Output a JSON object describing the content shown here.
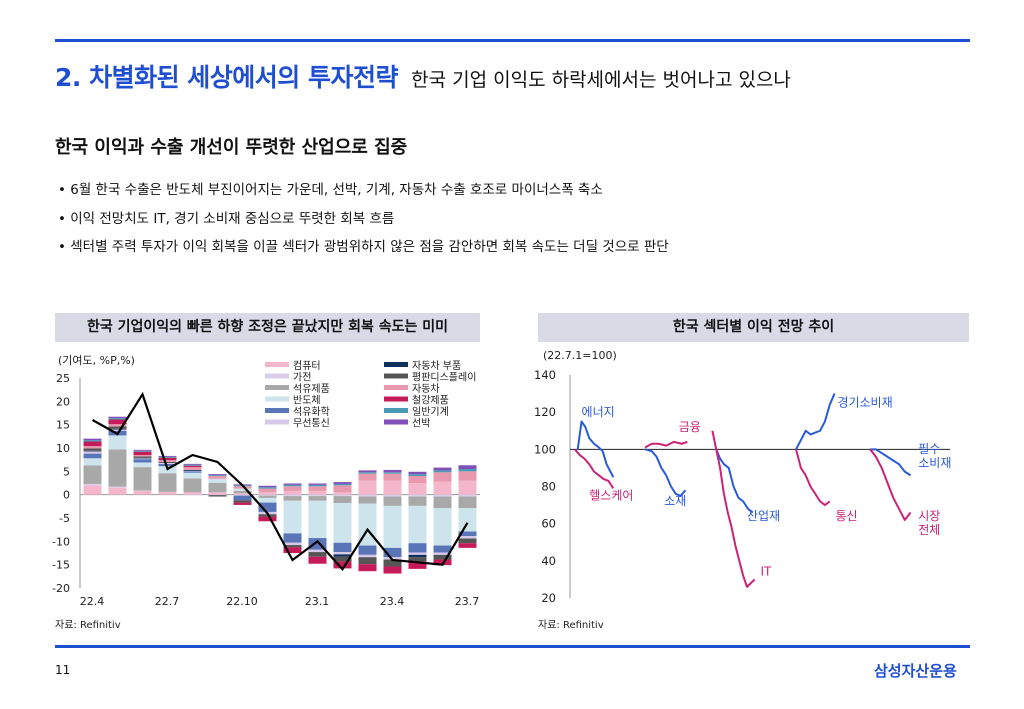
{
  "header": {
    "title": "2. 차별화된 세상에서의 투자전략",
    "subtitle": "한국 기업 이익도 하락세에서는 벗어나고 있으나"
  },
  "section_title": "한국 이익과 수출 개선이 뚜렷한 산업으로 집중",
  "bullets": [
    "• 6월 한국 수출은 반도체 부진이어지는 가운데, 선박, 기계, 자동차 수출 호조로 마이너스폭 축소",
    "• 이익 전망치도 IT, 경기 소비재 중심으로 뚜렷한 회복 흐름",
    "• 섹터별 주력 투자가 이익 회복을 이끌 섹터가 광범위하지 않은 점을 감안하면 회복 속도는 더딜 것으로 판단"
  ],
  "left_panel": {
    "title": "한국 기업이익의 빠른 하향 조정은 끝났지만 회복 속도는 미미",
    "unit": "(기여도, %P,%)",
    "source": "자료: Refinitiv"
  },
  "right_panel": {
    "title": "한국 섹터별 이익 전망 추이",
    "unit": "(22.7.1=100)",
    "source": "자료: Refinitiv"
  },
  "footer": {
    "page": "11",
    "brand": "삼성자산운용"
  },
  "colors": {
    "accent": "#1f4fd1"
  },
  "chart_data": [
    {
      "type": "bar",
      "stacked": true,
      "ylim": [
        -20,
        25
      ],
      "yticks": [
        25,
        20,
        15,
        10,
        5,
        0,
        -5,
        -10,
        -15,
        -20
      ],
      "xtick_labels": [
        "22.4",
        "22.7",
        "22.10",
        "23.1",
        "23.4",
        "23.7"
      ],
      "xtick_index": [
        0,
        3,
        6,
        9,
        12,
        15
      ],
      "n_periods": 16,
      "grid": false,
      "legend_position": "top-right",
      "series": [
        {
          "name": "컴퓨터",
          "color": "#f4b6ca",
          "values": [
            2,
            1.5,
            0.8,
            0.6,
            0.5,
            0.5,
            0.3,
            0.5,
            0.8,
            0.8,
            0.5,
            3,
            3,
            2.5,
            2.8,
            3
          ]
        },
        {
          "name": "가전",
          "color": "#d9cfe8",
          "values": [
            0.3,
            0.2,
            0.1,
            0,
            -0.1,
            -0.1,
            -0.2,
            -0.2,
            -0.3,
            -0.3,
            -0.3,
            -0.4,
            -0.4,
            -0.4,
            -0.4,
            -0.4
          ]
        },
        {
          "name": "석유제품",
          "color": "#a8a8a8",
          "values": [
            4,
            8,
            5,
            4,
            3,
            2,
            0.5,
            -0.5,
            -1,
            -1,
            -1.5,
            -1.5,
            -2,
            -2,
            -2.5,
            -2.5
          ]
        },
        {
          "name": "반도체",
          "color": "#cde4ec",
          "values": [
            1.5,
            3,
            1,
            1.5,
            1.2,
            0.8,
            0.5,
            -1,
            -7,
            -8,
            -8.5,
            -9,
            -9,
            -8,
            -8,
            -5
          ]
        },
        {
          "name": "석유화학",
          "color": "#5975b8",
          "values": [
            1,
            1,
            0.7,
            0.5,
            0.3,
            0,
            -1,
            -2,
            -2,
            -2.5,
            -2,
            -2,
            -2,
            -2,
            -1.5,
            -1
          ]
        },
        {
          "name": "무선통신",
          "color": "#d8c8ea",
          "values": [
            0.5,
            0.3,
            0.2,
            0.2,
            0.1,
            0.1,
            0,
            -0.5,
            -0.5,
            -0.5,
            -0.5,
            -0.5,
            -0.5,
            -0.5,
            -0.5,
            -0.5
          ]
        },
        {
          "name": "자동차 부품",
          "color": "#0d2f5c",
          "values": [
            0.1,
            0.1,
            0.1,
            0,
            0.2,
            0,
            0,
            0,
            0,
            0,
            -0.5,
            0,
            0,
            -0.5,
            0,
            0
          ]
        },
        {
          "name": "평판디스플레이",
          "color": "#555555",
          "values": [
            0.5,
            0.5,
            0.3,
            0.2,
            0,
            -0.3,
            -0.5,
            -0.5,
            -0.5,
            -1,
            -1,
            -1.5,
            -1.5,
            -1,
            -1,
            -1
          ]
        },
        {
          "name": "자동차",
          "color": "#e899ad",
          "values": [
            0.5,
            0.5,
            0.3,
            0.4,
            0.6,
            0.6,
            0.5,
            0.8,
            1,
            1,
            1.5,
            1.5,
            1.5,
            1.5,
            2,
            2
          ]
        },
        {
          "name": "철강제품",
          "color": "#c71a59",
          "values": [
            1,
            1,
            0.7,
            0.5,
            0.3,
            0,
            -0.5,
            -1,
            -1.2,
            -1.5,
            -1.5,
            -1.5,
            -1.5,
            -1.5,
            -1.2,
            -1
          ]
        },
        {
          "name": "일반기계",
          "color": "#4a9ab5",
          "values": [
            0.3,
            0.3,
            0.2,
            0.2,
            0.2,
            0.2,
            0.2,
            0.3,
            0.3,
            0.3,
            0.3,
            0.3,
            0.3,
            0.4,
            0.4,
            0.5
          ]
        },
        {
          "name": "선박",
          "color": "#8050b8",
          "values": [
            0.3,
            0.3,
            0.2,
            0.2,
            0.2,
            0.2,
            0.2,
            0.3,
            0.3,
            0.3,
            0.4,
            0.4,
            0.5,
            0.5,
            0.6,
            0.8
          ]
        }
      ],
      "total_line": {
        "color": "#000000",
        "values": [
          16,
          13,
          21.5,
          5.5,
          8.5,
          7,
          2,
          -4,
          -14,
          -10,
          -16,
          -7.5,
          -14,
          -14.5,
          -15,
          -6
        ]
      }
    },
    {
      "type": "line",
      "ylim": [
        20,
        140
      ],
      "yticks": [
        140,
        120,
        100,
        80,
        60,
        40,
        20
      ],
      "baseline": 100,
      "x_domain": [
        0,
        395
      ],
      "grid": false,
      "legend_position": "none",
      "series": [
        {
          "name": "에너지",
          "color": "#2a5bd7",
          "label_pos": [
            12,
            118
          ],
          "x": [
            8,
            12,
            16,
            20,
            25,
            30,
            34,
            38,
            42,
            45
          ],
          "y": [
            100,
            115,
            112,
            106,
            103,
            101,
            99,
            92,
            88,
            85
          ]
        },
        {
          "name": "헬스케어",
          "color": "#cc2277",
          "label_pos": [
            20,
            73
          ],
          "x": [
            5,
            10,
            15,
            20,
            25,
            30,
            35,
            40,
            45
          ],
          "y": [
            100,
            97,
            95,
            92,
            88,
            86,
            84,
            83,
            79
          ]
        },
        {
          "name": "금융",
          "color": "#cc2277",
          "label_pos": [
            113,
            110
          ],
          "x": [
            78,
            85,
            92,
            100,
            108,
            116,
            122
          ],
          "y": [
            101,
            103,
            103,
            102,
            104,
            103,
            104
          ]
        },
        {
          "name": "소재",
          "color": "#2a5bd7",
          "label_pos": [
            98,
            70
          ],
          "x": [
            78,
            85,
            90,
            95,
            100,
            105,
            110,
            115,
            120
          ],
          "y": [
            100,
            99,
            96,
            90,
            86,
            80,
            76,
            75,
            78
          ]
        },
        {
          "name": "산업재",
          "color": "#2a5bd7",
          "label_pos": [
            184,
            62
          ],
          "x": [
            152,
            156,
            160,
            165,
            170,
            175,
            180,
            185,
            190
          ],
          "y": [
            100,
            95,
            92,
            90,
            80,
            74,
            72,
            68,
            66
          ]
        },
        {
          "name": "IT",
          "color": "#cc2277",
          "label_pos": [
            198,
            32
          ],
          "x": [
            148,
            152,
            156,
            160,
            164,
            168,
            172,
            176,
            180,
            184,
            188,
            192
          ],
          "y": [
            110,
            100,
            90,
            76,
            66,
            58,
            48,
            40,
            32,
            26,
            28,
            30
          ]
        },
        {
          "name": "경기소비재",
          "color": "#2a5bd7",
          "label_pos": [
            278,
            123
          ],
          "x": [
            235,
            240,
            245,
            250,
            255,
            260,
            265,
            270,
            275
          ],
          "y": [
            100,
            105,
            110,
            108,
            109,
            110,
            115,
            124,
            130
          ]
        },
        {
          "name": "통신",
          "color": "#cc2277",
          "label_pos": [
            276,
            62
          ],
          "x": [
            235,
            240,
            245,
            250,
            255,
            260,
            265,
            270
          ],
          "y": [
            100,
            90,
            86,
            80,
            76,
            72,
            70,
            72
          ]
        },
        {
          "name": "필수\n소비재",
          "color": "#2a5bd7",
          "label_pos": [
            362,
            98
          ],
          "x": [
            312,
            318,
            324,
            330,
            336,
            342,
            348,
            354
          ],
          "y": [
            100,
            100,
            98,
            96,
            94,
            92,
            88,
            86
          ]
        },
        {
          "name": "시장\n전체",
          "color": "#cc2277",
          "label_pos": [
            362,
            62
          ],
          "x": [
            312,
            318,
            324,
            330,
            336,
            342,
            348,
            354
          ],
          "y": [
            100,
            96,
            90,
            82,
            74,
            68,
            62,
            66
          ]
        }
      ]
    }
  ]
}
